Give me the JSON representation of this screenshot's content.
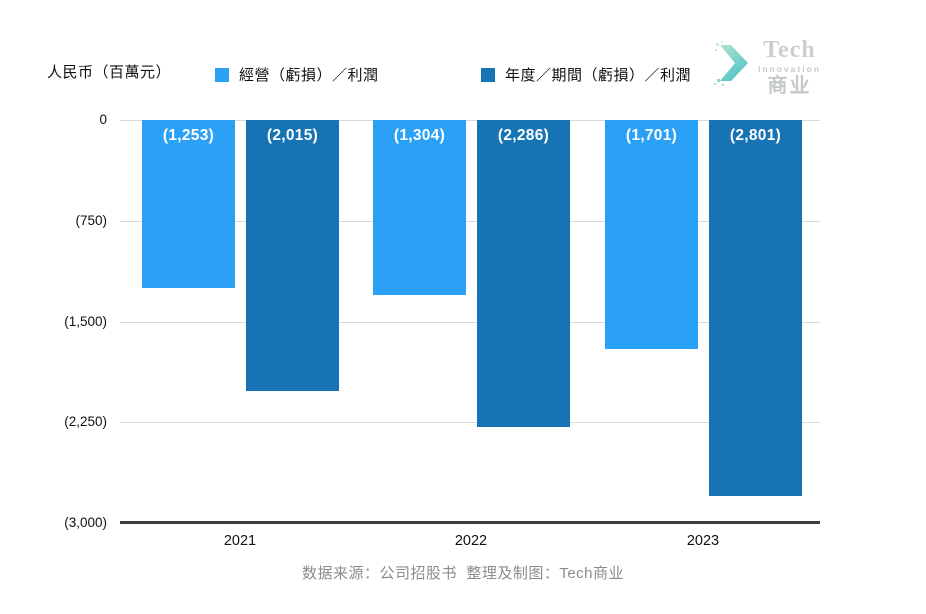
{
  "header": {
    "unit_label": "人民币（百萬元）",
    "legend": [
      {
        "label": "經營（虧損）／利潤",
        "color": "#2aa1f7"
      },
      {
        "label": "年度／期間（虧損）／利潤",
        "color": "#1673b4"
      }
    ]
  },
  "logo": {
    "line1": "Tech",
    "line2": "Innovation",
    "line3": "商业"
  },
  "chart_data": {
    "type": "bar",
    "categories": [
      "2021",
      "2022",
      "2023"
    ],
    "series": [
      {
        "name": "經營（虧損）／利潤",
        "color": "#2aa1f7",
        "values": [
          -1253,
          -1304,
          -1701
        ],
        "labels": [
          "(1,253)",
          "(1,304)",
          "(1,701)"
        ]
      },
      {
        "name": "年度／期間（虧損）／利潤",
        "color": "#1673b4",
        "values": [
          -2015,
          -2286,
          -2801
        ],
        "labels": [
          "(2,015)",
          "(2,286)",
          "(2,801)"
        ]
      }
    ],
    "ylabel": "人民币（百萬元）",
    "ylim": [
      -3000,
      0
    ],
    "yticks": [
      {
        "value": 0,
        "label": "0"
      },
      {
        "value": -750,
        "label": "(750)"
      },
      {
        "value": -1500,
        "label": "(1,500)"
      },
      {
        "value": -2250,
        "label": "(2,250)"
      },
      {
        "value": -3000,
        "label": "(3,000)"
      }
    ],
    "grid": true,
    "legend_position": "top"
  },
  "footer": {
    "text": "数据来源：公司招股书  整理及制图：Tech商业"
  },
  "colors": {
    "gridline": "#d9d9d9",
    "axis": "#3e3e3e",
    "bar_label_text": "#ffffff",
    "footer_text": "#8c8c8c"
  }
}
